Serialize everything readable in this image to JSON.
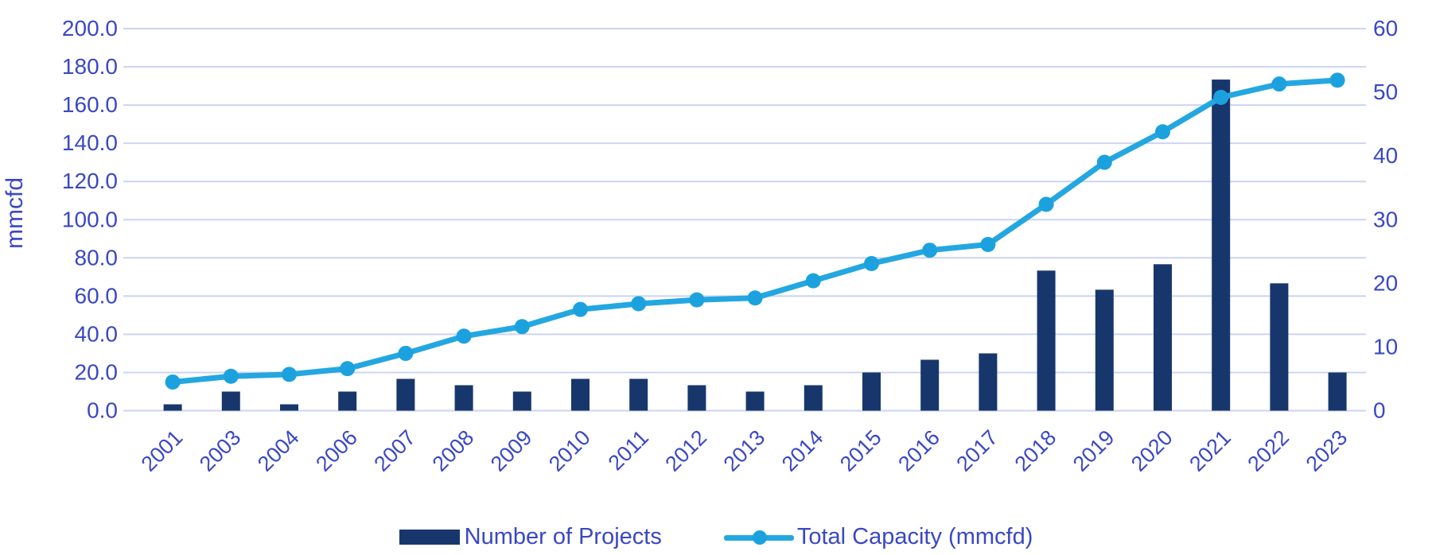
{
  "chart_data": {
    "type": "combo",
    "title": "",
    "categories": [
      "2001",
      "2003",
      "2004",
      "2006",
      "2007",
      "2008",
      "2009",
      "2010",
      "2011",
      "2012",
      "2013",
      "2014",
      "2015",
      "2016",
      "2017",
      "2018",
      "2019",
      "2020",
      "2021",
      "2022",
      "2023"
    ],
    "series": [
      {
        "name": "Number of Projects",
        "type": "bar",
        "axis": "right",
        "values": [
          1,
          3,
          1,
          3,
          5,
          4,
          3,
          5,
          5,
          4,
          3,
          4,
          6,
          8,
          9,
          22,
          19,
          23,
          52,
          20,
          6
        ]
      },
      {
        "name": "Total Capacity (mmcfd)",
        "type": "line",
        "axis": "left",
        "values": [
          15,
          18,
          19,
          22,
          30,
          39,
          44,
          53,
          56,
          58,
          59,
          68,
          77,
          84,
          87,
          108,
          130,
          146,
          164,
          171,
          173
        ]
      }
    ],
    "left_axis": {
      "label": "mmcfd",
      "min": 0,
      "max": 200,
      "step": 20,
      "tick_labels": [
        "0.0",
        "20.0",
        "40.0",
        "60.0",
        "80.0",
        "100.0",
        "120.0",
        "140.0",
        "160.0",
        "180.0",
        "200.0"
      ]
    },
    "right_axis": {
      "min": 0,
      "max": 60,
      "step": 10,
      "tick_labels": [
        "0",
        "10",
        "20",
        "30",
        "40",
        "50",
        "60"
      ]
    },
    "grid": true,
    "legend_position": "bottom",
    "colors": {
      "bar": "#17376C",
      "line": "#24A7E0",
      "marker": "#1BA2DE",
      "axis_text": "#3A48C4",
      "gridline": "#CBD4F2",
      "background": "#FFFFFF"
    }
  },
  "legend": {
    "items": [
      {
        "label": "Number of Projects"
      },
      {
        "label": "Total Capacity (mmcfd)"
      }
    ]
  }
}
